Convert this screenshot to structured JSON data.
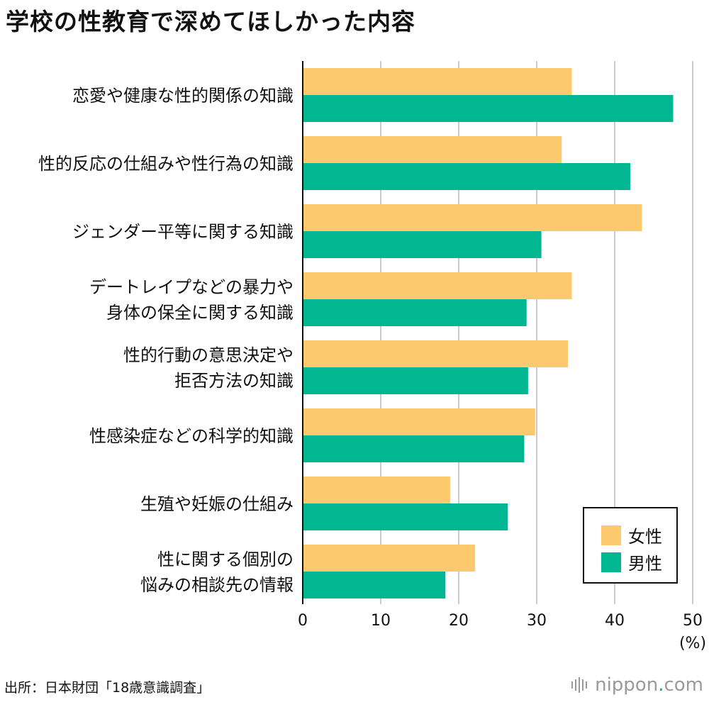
{
  "title": "学校の性教育で深めてほしかった内容",
  "source": "出所：日本財団「18歳意識調査」",
  "brand": {
    "name": "nippon",
    "dot": ".",
    "tld": "com"
  },
  "colors": {
    "female": "#fdc96d",
    "male": "#00b791",
    "grid": "#cccccc",
    "axis": "#111111"
  },
  "chart_data": {
    "type": "bar",
    "orientation": "horizontal",
    "title": "学校の性教育で深めてほしかった内容",
    "unit_label": "(%)",
    "xlim": [
      0,
      50
    ],
    "ticks": [
      0,
      10,
      20,
      30,
      40,
      50
    ],
    "grid": true,
    "legend_position": "bottom-right",
    "categories": [
      [
        "恋愛や健康な性的関係の知識"
      ],
      [
        "性的反応の仕組みや性行為の知識"
      ],
      [
        "ジェンダー平等に関する知識"
      ],
      [
        "デートレイプなどの暴力や",
        "身体の保全に関する知識"
      ],
      [
        "性的行動の意思決定や",
        "拒否方法の知識"
      ],
      [
        "性感染症などの科学的知識"
      ],
      [
        "生殖や妊娠の仕組み"
      ],
      [
        "性に関する個別の",
        "悩みの相談先の情報"
      ]
    ],
    "series": [
      {
        "name": "女性",
        "values": [
          34.5,
          33.2,
          43.5,
          34.5,
          34.0,
          29.8,
          18.9,
          22.1
        ]
      },
      {
        "name": "男性",
        "values": [
          47.5,
          42.0,
          30.6,
          28.7,
          28.9,
          28.4,
          26.3,
          18.3
        ]
      }
    ]
  }
}
